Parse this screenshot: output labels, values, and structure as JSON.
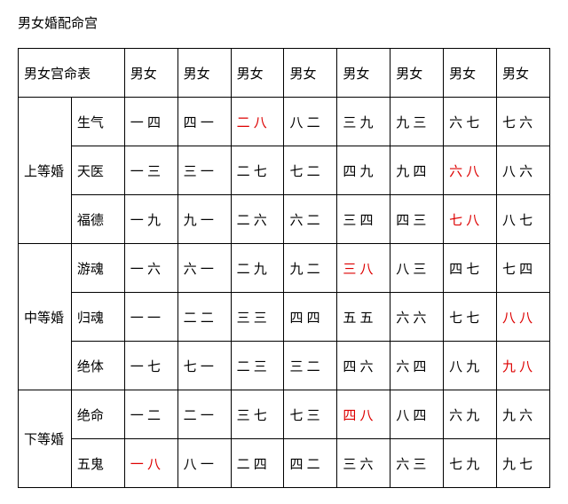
{
  "title": "男女婚配命宫",
  "table_header_label": "男女宫命表",
  "col_header": "男女",
  "groups": [
    {
      "label": "上等婚",
      "rows": [
        {
          "sub": "生气",
          "cells": [
            "一 四",
            "四 一",
            "二 八",
            "八 二",
            "三 九",
            "九 三",
            "六 七",
            "七 六"
          ],
          "red_idx": [
            2
          ]
        },
        {
          "sub": "天医",
          "cells": [
            "一 三",
            "三 一",
            "二 七",
            "七 二",
            "四 九",
            "九 四",
            "六 八",
            "八 六"
          ],
          "red_idx": [
            6
          ]
        },
        {
          "sub": "福德",
          "cells": [
            "一 九",
            "九 一",
            "二 六",
            "六 二",
            "三 四",
            "四 三",
            "七 八",
            "八 七"
          ],
          "red_idx": [
            6
          ]
        }
      ]
    },
    {
      "label": "中等婚",
      "rows": [
        {
          "sub": "游魂",
          "cells": [
            "一 六",
            "六 一",
            "二 九",
            "九 二",
            "三 八",
            "八 三",
            "四 七",
            "七 四"
          ],
          "red_idx": [
            4
          ]
        },
        {
          "sub": "归魂",
          "cells": [
            "一 一",
            "二 二",
            "三 三",
            "四 四",
            "五 五",
            "六 六",
            "七 七",
            "八 八"
          ],
          "red_idx": [
            7
          ]
        },
        {
          "sub": "绝体",
          "cells": [
            "一 七",
            "七 一",
            "二 三",
            "三 二",
            "四 六",
            "六 四",
            "八 九",
            "九 八"
          ],
          "red_idx": [
            7
          ]
        }
      ]
    },
    {
      "label": "下等婚",
      "rows": [
        {
          "sub": "绝命",
          "cells": [
            "一 二",
            "二 一",
            "三 七",
            "七 三",
            "四 八",
            "八 四",
            "六 九",
            "九 六"
          ],
          "red_idx": [
            4
          ]
        },
        {
          "sub": "五鬼",
          "cells": [
            "一 八",
            "八 一",
            "二 四",
            "四 二",
            "三 六",
            "六 三",
            "七 九",
            "九 七"
          ],
          "red_idx": [
            0
          ]
        }
      ]
    }
  ]
}
